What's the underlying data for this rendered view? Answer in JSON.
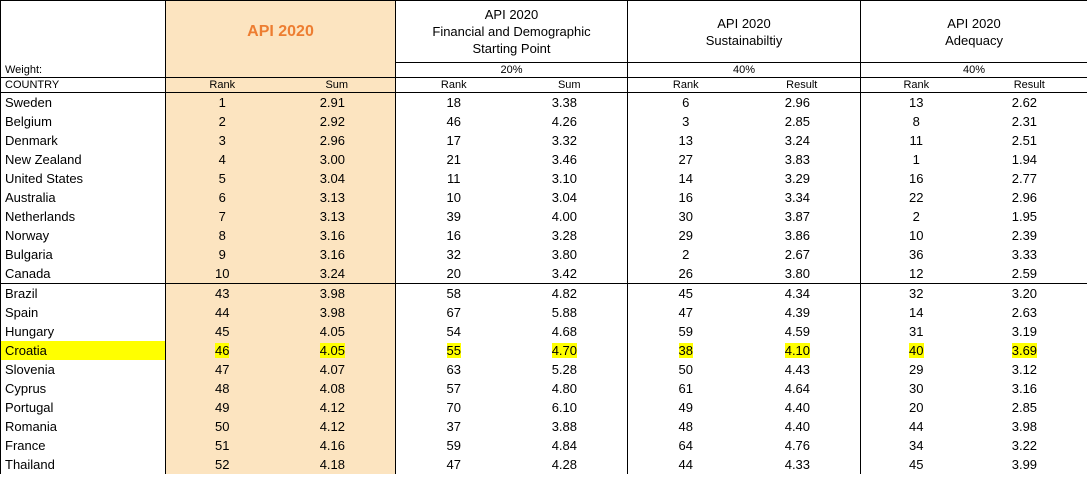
{
  "header": {
    "weight_label": "Weight:",
    "country_label": "COUNTRY",
    "api_title": "API 2020",
    "groups": [
      {
        "title_lines": [
          "API 2020",
          "Financial and Demographic",
          "Starting Point"
        ],
        "weight": "20%",
        "col1": "Rank",
        "col2": "Sum"
      },
      {
        "title_lines": [
          "API 2020",
          "Sustainabiltiy"
        ],
        "weight": "40%",
        "col1": "Rank",
        "col2": "Result"
      },
      {
        "title_lines": [
          "API 2020",
          "Adequacy"
        ],
        "weight": "40%",
        "col1": "Rank",
        "col2": "Result"
      }
    ],
    "api_col1": "Rank",
    "api_col2": "Sum"
  },
  "rows": [
    {
      "country": "Sweden",
      "c": [
        "1",
        "2.91",
        "18",
        "3.38",
        "6",
        "2.96",
        "13",
        "2.62"
      ]
    },
    {
      "country": "Belgium",
      "c": [
        "2",
        "2.92",
        "46",
        "4.26",
        "3",
        "2.85",
        "8",
        "2.31"
      ]
    },
    {
      "country": "Denmark",
      "c": [
        "3",
        "2.96",
        "17",
        "3.32",
        "13",
        "3.24",
        "11",
        "2.51"
      ]
    },
    {
      "country": "New Zealand",
      "c": [
        "4",
        "3.00",
        "21",
        "3.46",
        "27",
        "3.83",
        "1",
        "1.94"
      ]
    },
    {
      "country": "United States",
      "c": [
        "5",
        "3.04",
        "11",
        "3.10",
        "14",
        "3.29",
        "16",
        "2.77"
      ]
    },
    {
      "country": "Australia",
      "c": [
        "6",
        "3.13",
        "10",
        "3.04",
        "16",
        "3.34",
        "22",
        "2.96"
      ]
    },
    {
      "country": "Netherlands",
      "c": [
        "7",
        "3.13",
        "39",
        "4.00",
        "30",
        "3.87",
        "2",
        "1.95"
      ]
    },
    {
      "country": "Norway",
      "c": [
        "8",
        "3.16",
        "16",
        "3.28",
        "29",
        "3.86",
        "10",
        "2.39"
      ]
    },
    {
      "country": "Bulgaria",
      "c": [
        "9",
        "3.16",
        "32",
        "3.80",
        "2",
        "2.67",
        "36",
        "3.33"
      ]
    },
    {
      "country": "Canada",
      "c": [
        "10",
        "3.24",
        "20",
        "3.42",
        "26",
        "3.80",
        "12",
        "2.59"
      ]
    },
    {
      "country": "Brazil",
      "c": [
        "43",
        "3.98",
        "58",
        "4.82",
        "45",
        "4.34",
        "32",
        "3.20"
      ]
    },
    {
      "country": "Spain",
      "c": [
        "44",
        "3.98",
        "67",
        "5.88",
        "47",
        "4.39",
        "14",
        "2.63"
      ]
    },
    {
      "country": "Hungary",
      "c": [
        "45",
        "4.05",
        "54",
        "4.68",
        "59",
        "4.59",
        "31",
        "3.19"
      ]
    },
    {
      "country": "Croatia",
      "c": [
        "46",
        "4.05",
        "55",
        "4.70",
        "38",
        "4.10",
        "40",
        "3.69"
      ],
      "highlight": true
    },
    {
      "country": "Slovenia",
      "c": [
        "47",
        "4.07",
        "63",
        "5.28",
        "50",
        "4.43",
        "29",
        "3.12"
      ]
    },
    {
      "country": "Cyprus",
      "c": [
        "48",
        "4.08",
        "57",
        "4.80",
        "61",
        "4.64",
        "30",
        "3.16"
      ]
    },
    {
      "country": "Portugal",
      "c": [
        "49",
        "4.12",
        "70",
        "6.10",
        "49",
        "4.40",
        "20",
        "2.85"
      ]
    },
    {
      "country": "Romania",
      "c": [
        "50",
        "4.12",
        "37",
        "3.88",
        "48",
        "4.40",
        "44",
        "3.98"
      ]
    },
    {
      "country": "France",
      "c": [
        "51",
        "4.16",
        "59",
        "4.84",
        "64",
        "4.76",
        "34",
        "3.22"
      ]
    },
    {
      "country": "Thailand",
      "c": [
        "52",
        "4.18",
        "47",
        "4.28",
        "44",
        "4.33",
        "45",
        "3.99"
      ]
    }
  ],
  "colors": {
    "api_text": "#ED7D31",
    "api_fill": "#FCE4C0",
    "highlight": "#FFFF00"
  }
}
